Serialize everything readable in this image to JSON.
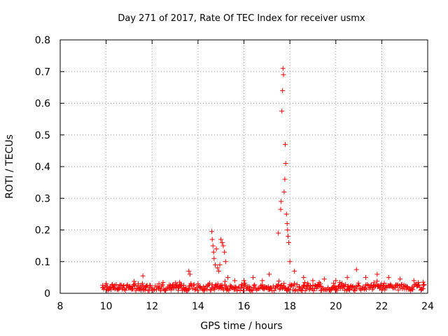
{
  "chart_data": {
    "type": "scatter",
    "title": "Day 271 of 2017, Rate Of TEC Index for receiver usmx",
    "xlabel": "GPS time / hours",
    "ylabel": "ROTI / TECUs",
    "xlim": [
      8,
      24
    ],
    "ylim": [
      0,
      0.8
    ],
    "xticks": [
      8,
      10,
      12,
      14,
      16,
      18,
      20,
      22,
      24
    ],
    "yticks": [
      0,
      0.1,
      0.2,
      0.3,
      0.4,
      0.5,
      0.6,
      0.7,
      0.8
    ],
    "xtick_labels": [
      "8",
      "10",
      "12",
      "14",
      "16",
      "18",
      "20",
      "22",
      "24"
    ],
    "ytick_labels": [
      "0",
      "0.1",
      "0.2",
      "0.3",
      "0.4",
      "0.5",
      "0.6",
      "0.7",
      "0.8"
    ],
    "grid": true,
    "marker": "+",
    "color": "#ff0000",
    "points": [
      [
        9.85,
        0.025
      ],
      [
        10.2,
        0.02
      ],
      [
        10.6,
        0.025
      ],
      [
        11.0,
        0.02
      ],
      [
        11.4,
        0.03
      ],
      [
        11.6,
        0.055
      ],
      [
        11.9,
        0.025
      ],
      [
        12.3,
        0.03
      ],
      [
        12.8,
        0.025
      ],
      [
        13.2,
        0.035
      ],
      [
        13.6,
        0.07
      ],
      [
        13.65,
        0.06
      ],
      [
        14.0,
        0.03
      ],
      [
        14.6,
        0.195
      ],
      [
        14.62,
        0.17
      ],
      [
        14.65,
        0.15
      ],
      [
        14.68,
        0.13
      ],
      [
        14.7,
        0.11
      ],
      [
        14.75,
        0.09
      ],
      [
        14.8,
        0.14
      ],
      [
        14.85,
        0.08
      ],
      [
        14.9,
        0.07
      ],
      [
        14.95,
        0.09
      ],
      [
        15.0,
        0.17
      ],
      [
        15.05,
        0.16
      ],
      [
        15.1,
        0.15
      ],
      [
        15.15,
        0.13
      ],
      [
        15.2,
        0.1
      ],
      [
        15.3,
        0.05
      ],
      [
        15.6,
        0.04
      ],
      [
        16.0,
        0.04
      ],
      [
        16.4,
        0.05
      ],
      [
        16.8,
        0.04
      ],
      [
        17.1,
        0.06
      ],
      [
        17.5,
        0.19
      ],
      [
        17.6,
        0.265
      ],
      [
        17.62,
        0.29
      ],
      [
        17.65,
        0.575
      ],
      [
        17.68,
        0.64
      ],
      [
        17.7,
        0.71
      ],
      [
        17.72,
        0.69
      ],
      [
        17.75,
        0.32
      ],
      [
        17.78,
        0.36
      ],
      [
        17.8,
        0.47
      ],
      [
        17.82,
        0.41
      ],
      [
        17.85,
        0.25
      ],
      [
        17.88,
        0.22
      ],
      [
        17.9,
        0.2
      ],
      [
        17.92,
        0.18
      ],
      [
        17.95,
        0.16
      ],
      [
        18.0,
        0.1
      ],
      [
        18.2,
        0.07
      ],
      [
        18.6,
        0.05
      ],
      [
        19.0,
        0.04
      ],
      [
        19.5,
        0.045
      ],
      [
        20.0,
        0.04
      ],
      [
        20.5,
        0.05
      ],
      [
        20.9,
        0.075
      ],
      [
        21.3,
        0.05
      ],
      [
        21.8,
        0.06
      ],
      [
        22.3,
        0.05
      ],
      [
        22.8,
        0.045
      ],
      [
        23.4,
        0.04
      ],
      [
        23.8,
        0.035
      ]
    ]
  }
}
